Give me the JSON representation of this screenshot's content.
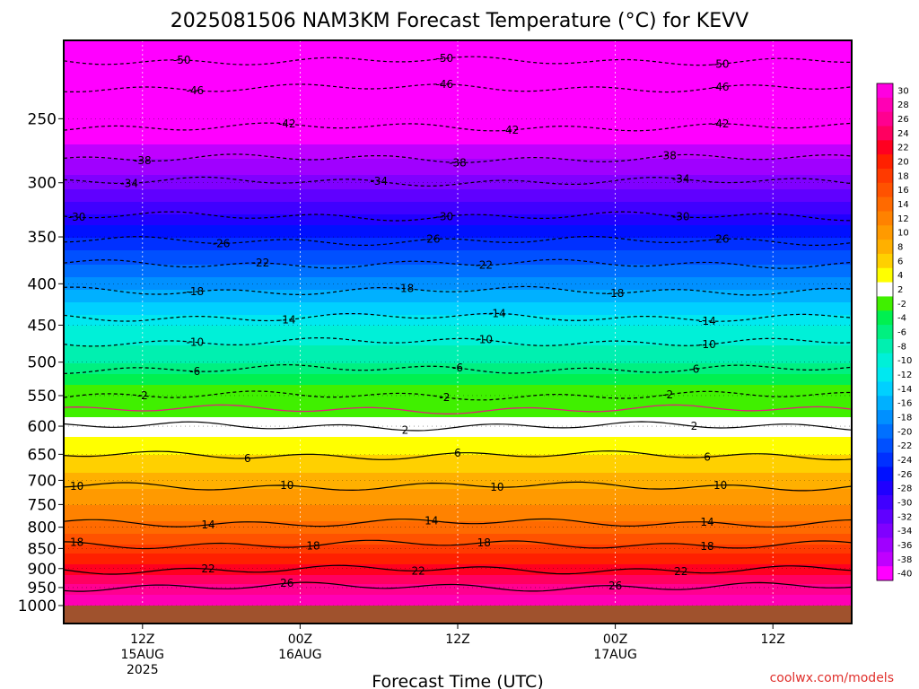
{
  "title": "2025081506 NAM3KM Forecast Temperature (°C) for KEVV",
  "xlabel": "Forecast Time (UTC)",
  "credit": "coolwx.com/models",
  "chart_data": {
    "type": "heatmap",
    "title": "2025081506 NAM3KM Forecast Temperature (°C) for KEVV",
    "xlabel": "Forecast Time (UTC)",
    "ylabel": "",
    "x_unit": "forecast hour from 2025-08-15 06Z",
    "xlim": [
      0,
      60
    ],
    "ylim": [
      1000,
      200
    ],
    "y_scale": "log",
    "y_ticks": [
      250,
      300,
      350,
      400,
      450,
      500,
      550,
      600,
      650,
      700,
      750,
      800,
      850,
      900,
      950,
      1000
    ],
    "x_ticks": [
      {
        "hour": 6,
        "lines": [
          "12Z",
          "15AUG",
          "2025"
        ]
      },
      {
        "hour": 18,
        "lines": [
          "00Z",
          "16AUG"
        ]
      },
      {
        "hour": 30,
        "lines": [
          "12Z"
        ]
      },
      {
        "hour": 42,
        "lines": [
          "00Z",
          "17AUG"
        ]
      },
      {
        "hour": 54,
        "lines": [
          "12Z"
        ]
      }
    ],
    "legend_levels": [
      30,
      28,
      26,
      24,
      22,
      20,
      18,
      16,
      14,
      12,
      10,
      8,
      6,
      4,
      2,
      -2,
      -4,
      -6,
      -8,
      -10,
      -12,
      -14,
      -16,
      -18,
      -20,
      -22,
      -24,
      -26,
      -28,
      -30,
      -32,
      -34,
      -36,
      -38,
      -40
    ],
    "legend_colors": [
      "#ff00e0",
      "#ff00b4",
      "#ff0090",
      "#ff0060",
      "#ff0020",
      "#ff2000",
      "#ff3a00",
      "#ff5200",
      "#ff6a00",
      "#ff8200",
      "#ff9a00",
      "#ffb000",
      "#ffd000",
      "#ffff00",
      "#ffffff",
      "#40f000",
      "#00f050",
      "#00f080",
      "#00f0b0",
      "#00f0d8",
      "#00e8f0",
      "#00d0ff",
      "#00b0ff",
      "#0090ff",
      "#0070ff",
      "#0050ff",
      "#0030ff",
      "#0010ff",
      "#2000ff",
      "#4000ff",
      "#6000ff",
      "#8000ff",
      "#a000ff",
      "#c000ff",
      "#ff00ff"
    ],
    "temperature_profile": [
      {
        "pressure": 1000,
        "temp": 30
      },
      {
        "pressure": 950,
        "temp": 27
      },
      {
        "pressure": 900,
        "temp": 23
      },
      {
        "pressure": 850,
        "temp": 19
      },
      {
        "pressure": 800,
        "temp": 15
      },
      {
        "pressure": 750,
        "temp": 12
      },
      {
        "pressure": 700,
        "temp": 9
      },
      {
        "pressure": 650,
        "temp": 6
      },
      {
        "pressure": 600,
        "temp": 3
      },
      {
        "pressure": 550,
        "temp": 0
      },
      {
        "pressure": 500,
        "temp": -6
      },
      {
        "pressure": 450,
        "temp": -10
      },
      {
        "pressure": 400,
        "temp": -17
      },
      {
        "pressure": 350,
        "temp": -24
      },
      {
        "pressure": 300,
        "temp": -33
      },
      {
        "pressure": 250,
        "temp": -41
      },
      {
        "pressure": 200,
        "temp": -53
      }
    ],
    "contours": [
      {
        "level": -50,
        "style": "dashed",
        "pressure": 212,
        "labels": [
          {
            "hour": 9,
            "text": "-50"
          },
          {
            "hour": 29,
            "text": "-50"
          },
          {
            "hour": 50,
            "text": "-50"
          }
        ]
      },
      {
        "level": -46,
        "style": "dashed",
        "pressure": 229,
        "labels": [
          {
            "hour": 10,
            "text": "-46"
          },
          {
            "hour": 29,
            "text": "-46"
          },
          {
            "hour": 50,
            "text": "-46"
          }
        ]
      },
      {
        "level": -42,
        "style": "dashed",
        "pressure": 256,
        "labels": [
          {
            "hour": 17,
            "text": "-42"
          },
          {
            "hour": 34,
            "text": "-42"
          },
          {
            "hour": 50,
            "text": "-42"
          }
        ]
      },
      {
        "level": -38,
        "style": "dashed",
        "pressure": 280,
        "labels": [
          {
            "hour": 6,
            "text": "-38"
          },
          {
            "hour": 30,
            "text": "-38"
          },
          {
            "hour": 46,
            "text": "-38"
          }
        ]
      },
      {
        "level": -34,
        "style": "dashed",
        "pressure": 299,
        "labels": [
          {
            "hour": 5,
            "text": "-34"
          },
          {
            "hour": 24,
            "text": "-34"
          },
          {
            "hour": 47,
            "text": "-34"
          }
        ]
      },
      {
        "level": -30,
        "style": "dashed",
        "pressure": 330,
        "labels": [
          {
            "hour": 1,
            "text": "-30"
          },
          {
            "hour": 29,
            "text": "-30"
          },
          {
            "hour": 47,
            "text": "-30"
          }
        ]
      },
      {
        "level": -26,
        "style": "dashed",
        "pressure": 354,
        "labels": [
          {
            "hour": 12,
            "text": "-26"
          },
          {
            "hour": 28,
            "text": "-26"
          },
          {
            "hour": 50,
            "text": "-26"
          }
        ]
      },
      {
        "level": -22,
        "style": "dashed",
        "pressure": 378,
        "labels": [
          {
            "hour": 15,
            "text": "-22"
          },
          {
            "hour": 32,
            "text": "-22"
          }
        ]
      },
      {
        "level": -18,
        "style": "dashed",
        "pressure": 408,
        "labels": [
          {
            "hour": 10,
            "text": "-18"
          },
          {
            "hour": 26,
            "text": "-18"
          },
          {
            "hour": 42,
            "text": "-18"
          }
        ]
      },
      {
        "level": -14,
        "style": "dashed",
        "pressure": 440,
        "labels": [
          {
            "hour": 17,
            "text": "-14"
          },
          {
            "hour": 33,
            "text": "-14"
          },
          {
            "hour": 49,
            "text": "-14"
          }
        ]
      },
      {
        "level": -10,
        "style": "dashed",
        "pressure": 472,
        "labels": [
          {
            "hour": 10,
            "text": "-10"
          },
          {
            "hour": 32,
            "text": "-10"
          },
          {
            "hour": 49,
            "text": "-10"
          }
        ]
      },
      {
        "level": -6,
        "style": "dashed",
        "pressure": 510,
        "labels": [
          {
            "hour": 10,
            "text": "-6"
          },
          {
            "hour": 30,
            "text": "-6"
          },
          {
            "hour": 48,
            "text": "-6"
          }
        ]
      },
      {
        "level": -2,
        "style": "dashed",
        "pressure": 550,
        "labels": [
          {
            "hour": 6,
            "text": "-2"
          },
          {
            "hour": 29,
            "text": "-2"
          },
          {
            "hour": 46,
            "text": "-2"
          }
        ]
      },
      {
        "level": 0,
        "style": "pink",
        "pressure": 572,
        "labels": []
      },
      {
        "level": 2,
        "style": "solid",
        "pressure": 600,
        "labels": [
          {
            "hour": 26,
            "text": "2"
          },
          {
            "hour": 48,
            "text": "2"
          }
        ]
      },
      {
        "level": 6,
        "style": "solid",
        "pressure": 652,
        "labels": [
          {
            "hour": 14,
            "text": "6"
          },
          {
            "hour": 30,
            "text": "6"
          },
          {
            "hour": 49,
            "text": "6"
          }
        ]
      },
      {
        "level": 10,
        "style": "solid",
        "pressure": 712,
        "labels": [
          {
            "hour": 1,
            "text": "10"
          },
          {
            "hour": 17,
            "text": "10"
          },
          {
            "hour": 33,
            "text": "10"
          },
          {
            "hour": 50,
            "text": "10"
          }
        ]
      },
      {
        "level": 14,
        "style": "solid",
        "pressure": 790,
        "labels": [
          {
            "hour": 11,
            "text": "14"
          },
          {
            "hour": 28,
            "text": "14"
          },
          {
            "hour": 49,
            "text": "14"
          }
        ]
      },
      {
        "level": 18,
        "style": "solid",
        "pressure": 840,
        "labels": [
          {
            "hour": 1,
            "text": "18"
          },
          {
            "hour": 19,
            "text": "18"
          },
          {
            "hour": 32,
            "text": "18"
          },
          {
            "hour": 49,
            "text": "18"
          }
        ]
      },
      {
        "level": 22,
        "style": "solid",
        "pressure": 903,
        "labels": [
          {
            "hour": 11,
            "text": "22"
          },
          {
            "hour": 27,
            "text": "22"
          },
          {
            "hour": 47,
            "text": "22"
          }
        ]
      },
      {
        "level": 26,
        "style": "solid",
        "pressure": 948,
        "labels": [
          {
            "hour": 17,
            "text": "26"
          },
          {
            "hour": 42,
            "text": "26"
          }
        ]
      }
    ]
  }
}
